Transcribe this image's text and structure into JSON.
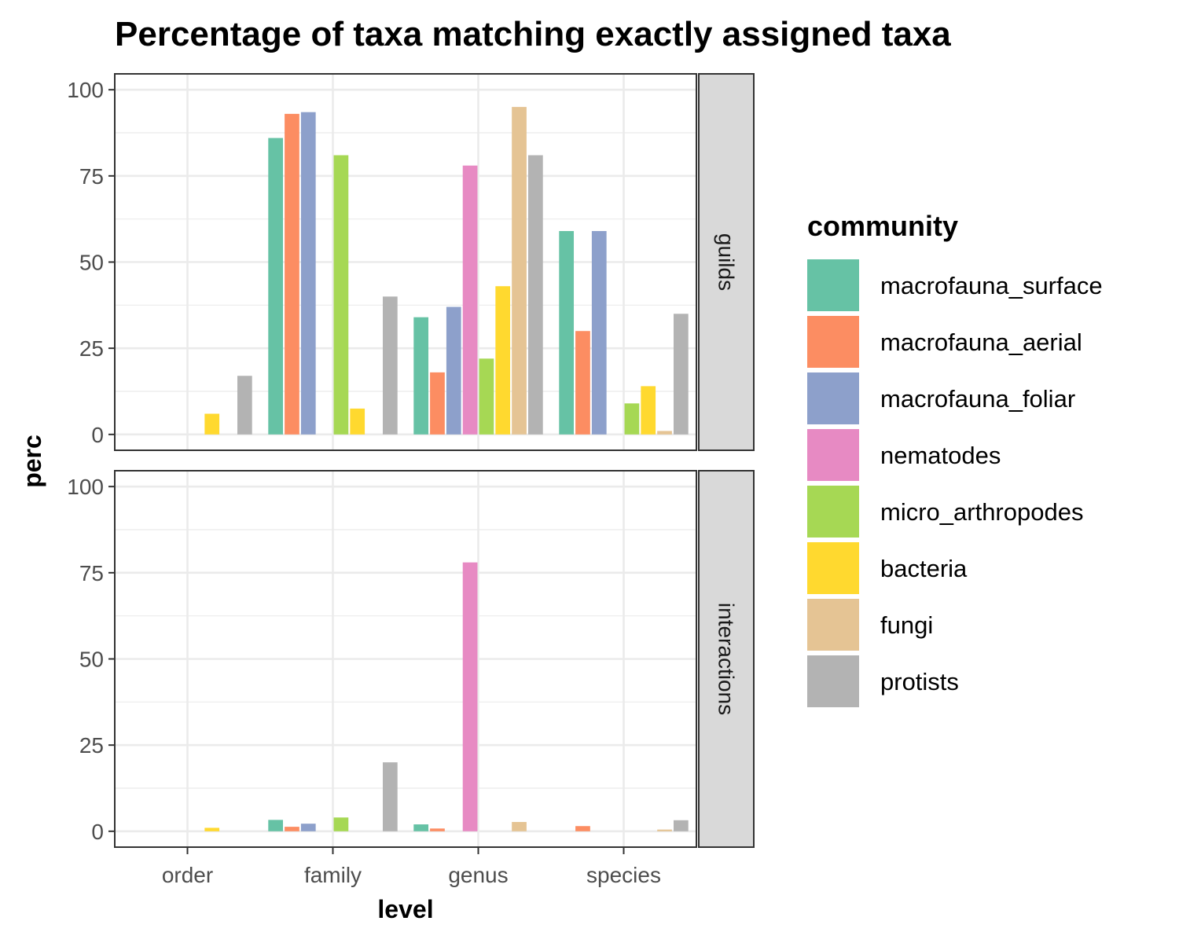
{
  "chart_data": {
    "type": "bar",
    "title": "Percentage of taxa matching exactly assigned taxa",
    "xlabel": "level",
    "ylabel": "perc",
    "ylim": [
      0,
      100
    ],
    "yticks": [
      0,
      25,
      50,
      75,
      100
    ],
    "categories": [
      "order",
      "family",
      "genus",
      "species"
    ],
    "legend": {
      "title": "community",
      "position": "right"
    },
    "grid": true,
    "series": [
      {
        "name": "macrofauna_surface",
        "color": "#66C2A5"
      },
      {
        "name": "macrofauna_aerial",
        "color": "#FC8D62"
      },
      {
        "name": "macrofauna_foliar",
        "color": "#8DA0CB"
      },
      {
        "name": "nematodes",
        "color": "#E78AC3"
      },
      {
        "name": "micro_arthropodes",
        "color": "#A6D854"
      },
      {
        "name": "bacteria",
        "color": "#FFD92F"
      },
      {
        "name": "fungi",
        "color": "#E5C494"
      },
      {
        "name": "protists",
        "color": "#B3B3B3"
      }
    ],
    "facets": [
      {
        "name": "guilds",
        "values": {
          "macrofauna_surface": [
            null,
            86,
            34,
            59
          ],
          "macrofauna_aerial": [
            null,
            93,
            18,
            30
          ],
          "macrofauna_foliar": [
            null,
            93.5,
            37,
            59
          ],
          "nematodes": [
            null,
            null,
            78,
            null
          ],
          "micro_arthropodes": [
            null,
            81,
            22,
            9
          ],
          "bacteria": [
            6,
            7.5,
            43,
            14
          ],
          "fungi": [
            null,
            null,
            95,
            1
          ],
          "protists": [
            17,
            40,
            81,
            35
          ]
        }
      },
      {
        "name": "interactions",
        "values": {
          "macrofauna_surface": [
            null,
            3.3,
            2,
            null
          ],
          "macrofauna_aerial": [
            null,
            1.3,
            0.8,
            1.5
          ],
          "macrofauna_foliar": [
            null,
            2.2,
            null,
            null
          ],
          "nematodes": [
            null,
            null,
            78,
            null
          ],
          "micro_arthropodes": [
            null,
            4,
            null,
            null
          ],
          "bacteria": [
            1,
            null,
            null,
            null
          ],
          "fungi": [
            null,
            null,
            2.7,
            0.5
          ],
          "protists": [
            null,
            20,
            null,
            3.2
          ]
        }
      }
    ]
  }
}
